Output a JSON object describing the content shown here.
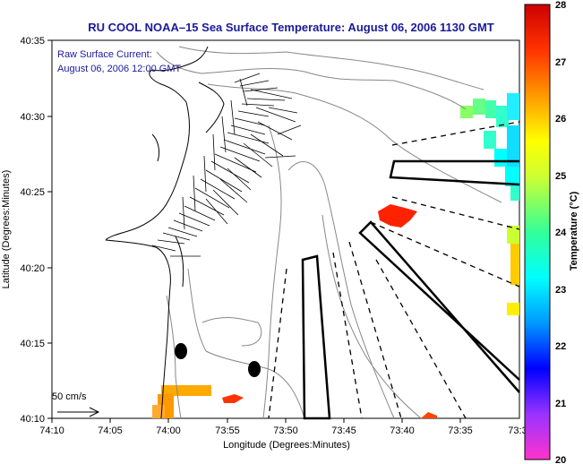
{
  "title": "RU COOL  NOAA–15  Sea Surface Temperature:  August 06, 2006 1130 GMT",
  "current_label_line1": "Raw Surface Current:",
  "current_label_line2": "August 06, 2006 12:00 GMT",
  "scale_label": "50 cm/s",
  "x_axis_label": "Longitude (Degrees:Minutes)",
  "y_axis_label": "Latitude (Degrees:Minutes)",
  "x_ticks": [
    "74:10",
    "74:05",
    "74:00",
    "73:55",
    "73:50",
    "73:45",
    "73:40",
    "73:35",
    "73:3"
  ],
  "y_ticks": [
    "40:35",
    "40:30",
    "40:25",
    "40:20",
    "40:15",
    "40:10"
  ],
  "colorbar": {
    "label": "Temperature (°C)",
    "ticks": [
      "28",
      "27",
      "26",
      "25",
      "24",
      "23",
      "22",
      "21",
      "20"
    ],
    "min": 20,
    "max": 28,
    "colors": [
      "#ff33cc",
      "#9933ff",
      "#0000ff",
      "#0099ff",
      "#00ffff",
      "#33ff99",
      "#ccff33",
      "#ffff00",
      "#ff9900",
      "#ff3300",
      "#cc0000"
    ]
  },
  "map": {
    "lon_range": [
      "74:10",
      "73:3"
    ],
    "lat_range": [
      "40:10",
      "40:35"
    ],
    "land_color": "#ffffff",
    "coastline_color": "#000000",
    "bathymetry_color": "#888888"
  }
}
